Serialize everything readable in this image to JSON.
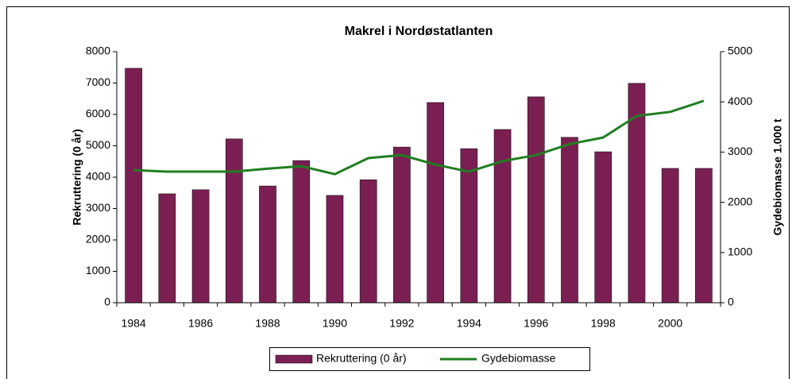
{
  "chart_data": {
    "type": "bar",
    "title": "Makrel i Nordøstatlanten",
    "categories": [
      "1984",
      null,
      "1986",
      null,
      "1988",
      null,
      "1990",
      null,
      "1992",
      null,
      "1994",
      null,
      "1996",
      null,
      "1998",
      null,
      "2000",
      null
    ],
    "series": [
      {
        "name": "Rekruttering (0 år)",
        "type": "bar",
        "color": "#7b1f52",
        "values": [
          7470,
          3470,
          3600,
          5220,
          3720,
          4530,
          3420,
          3920,
          4960,
          6380,
          4910,
          5520,
          6560,
          5270,
          4810,
          6990,
          4280,
          4280
        ]
      },
      {
        "name": "Gydebiomasse",
        "type": "line",
        "axis": "y2",
        "color": "#1f7f1f",
        "values": [
          2640,
          2610,
          2610,
          2610,
          2670,
          2720,
          2560,
          2880,
          2940,
          2750,
          2610,
          2820,
          2940,
          3160,
          3290,
          3720,
          3800,
          4020
        ]
      }
    ],
    "ylabel": "Rekruttering (0 år)",
    "y2label": "Gydebiomasse 1.000 t",
    "ylim": [
      0,
      8000
    ],
    "yticks": [
      0,
      1000,
      2000,
      3000,
      4000,
      5000,
      6000,
      7000,
      8000
    ],
    "y2lim": [
      0,
      5000
    ],
    "y2ticks": [
      0,
      1000,
      2000,
      3000,
      4000,
      5000
    ],
    "legend": "bottom"
  }
}
